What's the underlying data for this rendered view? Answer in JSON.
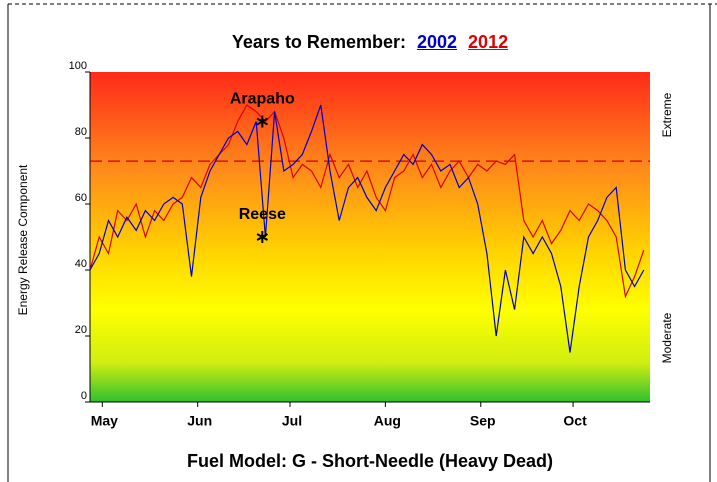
{
  "chart_data": {
    "type": "line",
    "title": "Years to Remember:",
    "y_label": "Energy Release Component",
    "x_label": "Fuel Model: G - Short-Needle (Heavy Dead)",
    "right_labels": [
      "Extreme",
      "Moderate"
    ],
    "x": [
      117,
      120,
      123,
      126,
      129,
      132,
      135,
      138,
      141,
      144,
      147,
      150,
      153,
      156,
      159,
      162,
      165,
      168,
      171,
      174,
      177,
      180,
      183,
      186,
      189,
      192,
      195,
      198,
      201,
      204,
      207,
      210,
      213,
      216,
      219,
      222,
      225,
      228,
      231,
      234,
      237,
      240,
      243,
      246,
      249,
      252,
      255,
      258,
      261,
      264,
      267,
      270,
      273,
      276,
      279,
      282,
      285,
      288,
      291,
      294,
      297
    ],
    "xlim": [
      117,
      299
    ],
    "xticks": [
      {
        "value": 121,
        "label": "May"
      },
      {
        "value": 152,
        "label": "Jun"
      },
      {
        "value": 182,
        "label": "Jul"
      },
      {
        "value": 213,
        "label": "Aug"
      },
      {
        "value": 244,
        "label": "Sep"
      },
      {
        "value": 274,
        "label": "Oct"
      }
    ],
    "ylim": [
      0,
      100
    ],
    "yticks": [
      0,
      20,
      40,
      60,
      80,
      100
    ],
    "reference_line": {
      "value": 73,
      "color": "#cc0000"
    },
    "series": [
      {
        "name": "2002",
        "color": "#0000cc",
        "values": [
          40,
          45,
          55,
          50,
          56,
          52,
          58,
          55,
          60,
          62,
          60,
          38,
          62,
          70,
          75,
          80,
          82,
          78,
          85,
          50,
          88,
          70,
          72,
          75,
          82,
          90,
          70,
          55,
          65,
          68,
          62,
          58,
          65,
          70,
          75,
          72,
          78,
          75,
          70,
          72,
          65,
          68,
          60,
          45,
          20,
          40,
          28,
          50,
          45,
          50,
          45,
          35,
          15,
          35,
          50,
          55,
          62,
          65,
          40,
          35,
          40
        ]
      },
      {
        "name": "2012",
        "color": "#dd0000",
        "values": [
          40,
          50,
          45,
          58,
          55,
          60,
          50,
          58,
          55,
          60,
          62,
          68,
          65,
          72,
          75,
          78,
          85,
          90,
          88,
          85,
          88,
          80,
          68,
          72,
          70,
          65,
          75,
          68,
          72,
          65,
          70,
          62,
          58,
          68,
          70,
          75,
          68,
          72,
          65,
          70,
          73,
          68,
          72,
          70,
          73,
          72,
          75,
          55,
          50,
          55,
          48,
          52,
          58,
          55,
          60,
          58,
          55,
          50,
          32,
          38,
          46
        ]
      }
    ],
    "annotations": [
      {
        "text": "Arapaho",
        "x": 173,
        "y": 85
      },
      {
        "text": "Reese",
        "x": 173,
        "y": 50
      }
    ]
  }
}
